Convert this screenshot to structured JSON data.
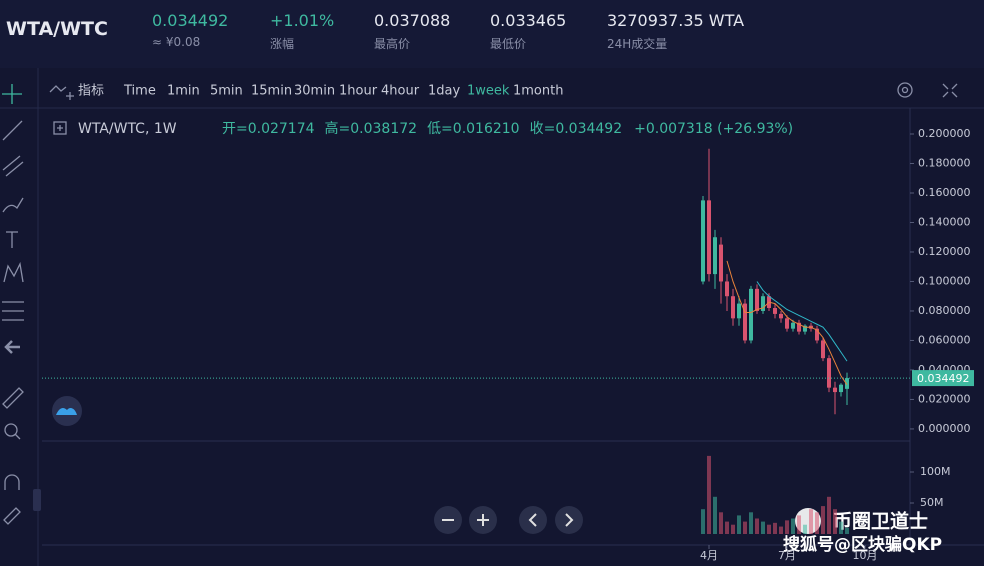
{
  "header": {
    "pair": "WTA/WTC",
    "stats": [
      {
        "value": "0.034492",
        "label": "≈ ¥0.08"
      },
      {
        "value": "+1.01%",
        "label": "涨幅"
      },
      {
        "value": "0.037088",
        "label": "最高价"
      },
      {
        "value": "0.033465",
        "label": "最低价"
      },
      {
        "value": "3270937.35 WTA",
        "label": "24H成交量"
      }
    ]
  },
  "toolbar": {
    "indicator": "指标",
    "intervals": [
      "Time",
      "1min",
      "5min",
      "15min",
      "30min",
      "1hour",
      "4hour",
      "1day",
      "1week",
      "1month"
    ],
    "active": "1week"
  },
  "legend": {
    "symbol": "WTA/WTC, 1W",
    "ohlc": [
      "开=0.027174",
      "高=0.038172",
      "低=0.016210",
      "收=0.034492"
    ],
    "change": "+0.007318 (+26.93%)"
  },
  "chart_data": {
    "type": "candlestick",
    "categories": [
      null,
      "4月",
      null,
      null,
      null,
      null,
      null,
      null,
      null,
      null,
      null,
      null,
      null,
      null,
      "7月",
      null,
      null,
      null,
      null,
      null,
      null,
      null,
      null,
      null,
      null,
      null,
      null,
      "10月"
    ],
    "open": [
      0.1,
      0.155,
      0.105,
      0.125,
      0.1,
      0.09,
      0.075,
      0.085,
      0.06,
      0.095,
      0.08,
      0.09,
      0.082,
      0.078,
      0.075,
      0.068,
      0.072,
      0.066,
      0.07,
      0.068,
      0.06,
      0.048,
      0.028,
      0.025,
      0.027174,
      null,
      null,
      null
    ],
    "high": [
      0.158,
      0.19,
      0.135,
      0.13,
      0.105,
      0.095,
      0.09,
      0.088,
      0.097,
      0.098,
      0.092,
      0.092,
      0.085,
      0.08,
      0.077,
      0.074,
      0.074,
      0.071,
      0.072,
      0.07,
      0.062,
      0.05,
      0.032,
      0.031,
      0.038172,
      null,
      null,
      null
    ],
    "low": [
      0.098,
      0.1,
      0.095,
      0.085,
      0.08,
      0.07,
      0.07,
      0.058,
      0.058,
      0.078,
      0.078,
      0.08,
      0.075,
      0.072,
      0.066,
      0.066,
      0.064,
      0.064,
      0.066,
      0.058,
      0.046,
      0.025,
      0.01,
      0.022,
      0.01621,
      null,
      null,
      null
    ],
    "close": [
      0.155,
      0.105,
      0.13,
      0.1,
      0.09,
      0.075,
      0.085,
      0.06,
      0.095,
      0.08,
      0.09,
      0.082,
      0.078,
      0.075,
      0.068,
      0.072,
      0.066,
      0.07,
      0.068,
      0.06,
      0.048,
      0.028,
      0.025,
      0.03,
      0.034492,
      null,
      null,
      null
    ],
    "up_color": "#3fb9a0",
    "down_color": "#d9546f",
    "ylim": [
      -0.0075,
      0.2095
    ],
    "yticks": [
      {
        "value": 0,
        "label": "0.000000"
      },
      {
        "value": 0.02,
        "label": "0.020000"
      },
      {
        "value": 0.04,
        "label": "0.040000"
      },
      {
        "value": 0.06,
        "label": "0.060000"
      },
      {
        "value": 0.08,
        "label": "0.080000"
      },
      {
        "value": 0.1,
        "label": "0.100000"
      },
      {
        "value": 0.12,
        "label": "0.120000"
      },
      {
        "value": 0.14,
        "label": "0.140000"
      },
      {
        "value": 0.16,
        "label": "0.160000"
      },
      {
        "value": 0.18,
        "label": "0.180000"
      },
      {
        "value": 0.2,
        "label": "0.200000"
      }
    ],
    "last_price": 0.034492,
    "ma": [
      {
        "color": "#e8823a",
        "values": [
          null,
          null,
          null,
          null,
          0.114,
          0.1,
          0.089,
          0.079,
          0.079,
          0.081,
          0.082,
          0.086,
          0.085,
          0.081,
          0.076,
          0.073,
          0.071,
          0.069,
          0.069,
          0.067,
          0.062,
          0.054,
          0.045,
          0.036,
          0.03,
          null,
          null,
          null
        ]
      },
      {
        "color": "#2fb8c8",
        "values": [
          null,
          null,
          null,
          null,
          null,
          null,
          null,
          null,
          null,
          0.1,
          0.094,
          0.09,
          0.087,
          0.084,
          0.081,
          0.079,
          0.077,
          0.075,
          0.073,
          0.071,
          0.069,
          0.064,
          0.058,
          0.052,
          0.046,
          null,
          null,
          null
        ]
      }
    ],
    "volume": {
      "values": [
        40000000,
        126000000,
        60000000,
        35000000,
        20000000,
        15000000,
        30000000,
        20000000,
        35000000,
        25000000,
        20000000,
        15000000,
        18000000,
        12000000,
        22000000,
        25000000,
        30000000,
        15000000,
        40000000,
        35000000,
        45000000,
        60000000,
        40000000,
        20000000,
        10000000,
        null,
        null,
        null
      ],
      "ylim": [
        0,
        135500000
      ],
      "yticks": [
        {
          "value": 50000000,
          "label": "50M"
        },
        {
          "value": 100000000,
          "label": "100M"
        }
      ]
    }
  },
  "watermark": {
    "line1": "币圈卫道士",
    "line2": "搜狐号@区块骗QKP"
  }
}
